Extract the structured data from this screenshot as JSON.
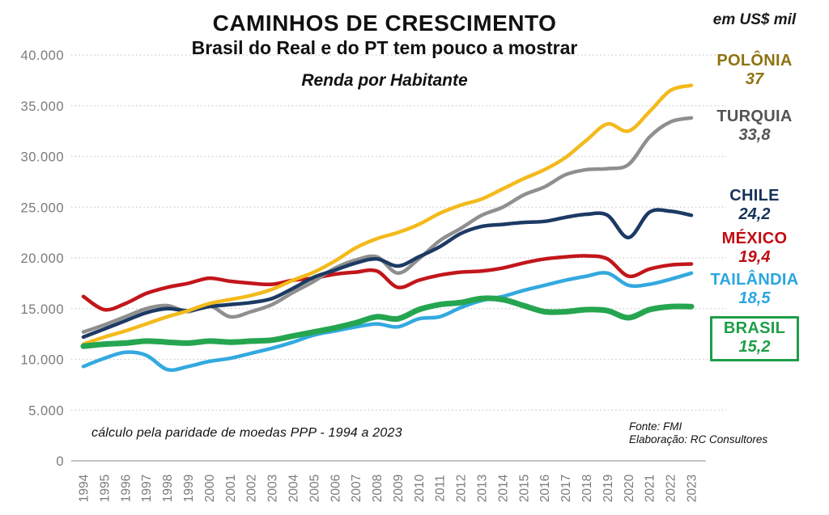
{
  "header": {
    "title": "CAMINHOS DE CRESCIMENTO",
    "subtitle": "Brasil do Real e do PT tem pouco a mostrar",
    "chart_label": "Renda por Habitante",
    "unit_label": "em US$ mil"
  },
  "footer": {
    "note": "cálculo pela paridade de moedas PPP - 1994 a 2023",
    "source": "Fonte: FMI",
    "elaboration": "Elaboração: RC Consultores"
  },
  "chart_data": {
    "type": "line",
    "title": "Renda por Habitante",
    "unit": "US$ mil (thousands, PPP)",
    "x": [
      1994,
      1995,
      1996,
      1997,
      1998,
      1999,
      2000,
      2001,
      2002,
      2003,
      2004,
      2005,
      2006,
      2007,
      2008,
      2009,
      2010,
      2011,
      2012,
      2013,
      2014,
      2015,
      2016,
      2017,
      2018,
      2019,
      2020,
      2021,
      2022,
      2023
    ],
    "ylim": [
      0,
      40
    ],
    "y_ticks": [
      {
        "value": 0,
        "label": "0"
      },
      {
        "value": 5,
        "label": "5.000"
      },
      {
        "value": 10,
        "label": "10.000"
      },
      {
        "value": 15,
        "label": "15.000"
      },
      {
        "value": 20,
        "label": "20.000"
      },
      {
        "value": 25,
        "label": "25.000"
      },
      {
        "value": 30,
        "label": "30.000"
      },
      {
        "value": 35,
        "label": "35.000"
      },
      {
        "value": 40,
        "label": "40.000"
      }
    ],
    "grid": "dotted horizontal",
    "legend_position": "right",
    "series": [
      {
        "name": "POLÔNIA",
        "value_label": "37",
        "color": "#F3BA1C",
        "label_color": "#8E7310",
        "line_width": 4.5,
        "boxed": false,
        "values": [
          11.5,
          12.2,
          12.8,
          13.5,
          14.2,
          14.8,
          15.5,
          15.9,
          16.3,
          16.9,
          17.8,
          18.6,
          19.7,
          21.0,
          21.9,
          22.5,
          23.3,
          24.4,
          25.2,
          25.8,
          26.8,
          27.8,
          28.7,
          29.9,
          31.6,
          33.2,
          32.5,
          34.4,
          36.5,
          37.0
        ]
      },
      {
        "name": "TURQUIA",
        "value_label": "33,8",
        "color": "#8F8F8F",
        "label_color": "#545454",
        "line_width": 4.5,
        "boxed": false,
        "values": [
          12.7,
          13.4,
          14.2,
          15.0,
          15.3,
          14.7,
          15.3,
          14.2,
          14.7,
          15.4,
          16.6,
          17.7,
          19.0,
          19.8,
          20.1,
          18.5,
          19.9,
          21.7,
          22.9,
          24.2,
          25.0,
          26.2,
          27.0,
          28.2,
          28.7,
          28.8,
          29.2,
          31.9,
          33.4,
          33.8
        ]
      },
      {
        "name": "CHILE",
        "value_label": "24,2",
        "color": "#1C3A63",
        "label_color": "#17335A",
        "line_width": 4.5,
        "boxed": false,
        "values": [
          12.2,
          13.0,
          13.8,
          14.6,
          15.0,
          14.8,
          15.2,
          15.4,
          15.6,
          16.0,
          17.0,
          18.1,
          18.8,
          19.5,
          19.9,
          19.2,
          20.1,
          21.1,
          22.4,
          23.1,
          23.3,
          23.5,
          23.6,
          24.0,
          24.3,
          24.2,
          22.0,
          24.5,
          24.6,
          24.2
        ]
      },
      {
        "name": "MÉXICO",
        "value_label": "19,4",
        "color": "#C2161B",
        "label_color": "#C00C12",
        "line_width": 4.5,
        "boxed": false,
        "values": [
          16.2,
          14.9,
          15.5,
          16.5,
          17.1,
          17.5,
          18.0,
          17.7,
          17.5,
          17.4,
          17.8,
          18.0,
          18.4,
          18.6,
          18.7,
          17.1,
          17.8,
          18.3,
          18.6,
          18.7,
          19.0,
          19.5,
          19.9,
          20.1,
          20.2,
          19.9,
          18.2,
          18.9,
          19.3,
          19.4
        ]
      },
      {
        "name": "TAILÂNDIA",
        "value_label": "18,5",
        "color": "#33A9DF",
        "label_color": "#2BA6DE",
        "line_width": 4.5,
        "boxed": false,
        "values": [
          9.3,
          10.1,
          10.7,
          10.4,
          9.0,
          9.3,
          9.8,
          10.1,
          10.6,
          11.1,
          11.7,
          12.4,
          12.8,
          13.2,
          13.5,
          13.2,
          14.0,
          14.2,
          15.1,
          15.8,
          16.2,
          16.8,
          17.3,
          17.8,
          18.2,
          18.5,
          17.3,
          17.4,
          17.9,
          18.5
        ]
      },
      {
        "name": "BRASIL",
        "value_label": "15,2",
        "color": "#25A550",
        "label_color": "#1E9E48",
        "line_width": 7,
        "boxed": true,
        "values": [
          11.3,
          11.5,
          11.6,
          11.8,
          11.7,
          11.6,
          11.8,
          11.7,
          11.8,
          11.9,
          12.3,
          12.7,
          13.1,
          13.6,
          14.2,
          14.0,
          14.9,
          15.4,
          15.6,
          16.0,
          15.9,
          15.3,
          14.7,
          14.7,
          14.9,
          14.8,
          14.1,
          14.9,
          15.2,
          15.2
        ]
      }
    ],
    "colors": {
      "grid": "#c9c9c9",
      "zero_axis": "#b0b0b0",
      "tick_text": "#7b7b7b"
    }
  }
}
